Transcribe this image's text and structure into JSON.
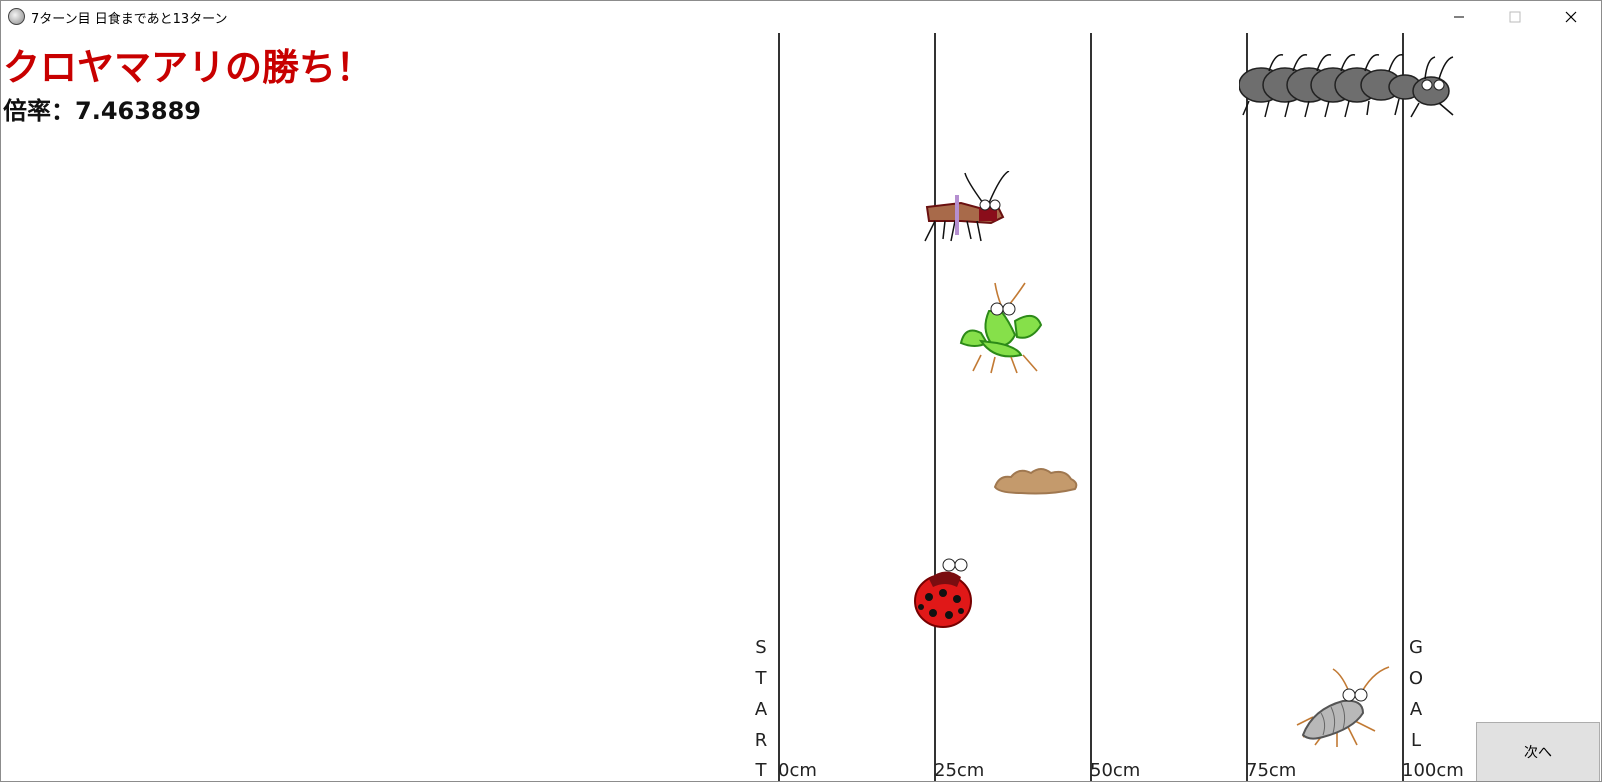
{
  "window": {
    "title": "7ターン目 日食まであと13ターン",
    "icon": "app-icon",
    "buttons": [
      "minimize-icon",
      "maximize-icon",
      "close-icon"
    ]
  },
  "result": {
    "winner_text": "クロヤマアリの勝ち！",
    "odds_text": "倍率：7.463889",
    "winner_color": "#c80000"
  },
  "track": {
    "distance_labels": [
      "0cm",
      "25cm",
      "50cm",
      "75cm",
      "100cm"
    ],
    "start_letters": [
      "S",
      "T",
      "A",
      "R",
      "T"
    ],
    "goal_letters": [
      "G",
      "O",
      "A",
      "L"
    ]
  },
  "racers": [
    {
      "name": "ant-swarm-icon",
      "distance_cm": 94
    },
    {
      "name": "cricket-icon",
      "distance_cm": 30
    },
    {
      "name": "mantis-icon",
      "distance_cm": 36
    },
    {
      "name": "dirt-mound-icon",
      "distance_cm": 41
    },
    {
      "name": "ladybug-icon",
      "distance_cm": 26
    },
    {
      "name": "silverfish-icon",
      "distance_cm": 92
    }
  ],
  "next_button": {
    "label": "次へ"
  }
}
